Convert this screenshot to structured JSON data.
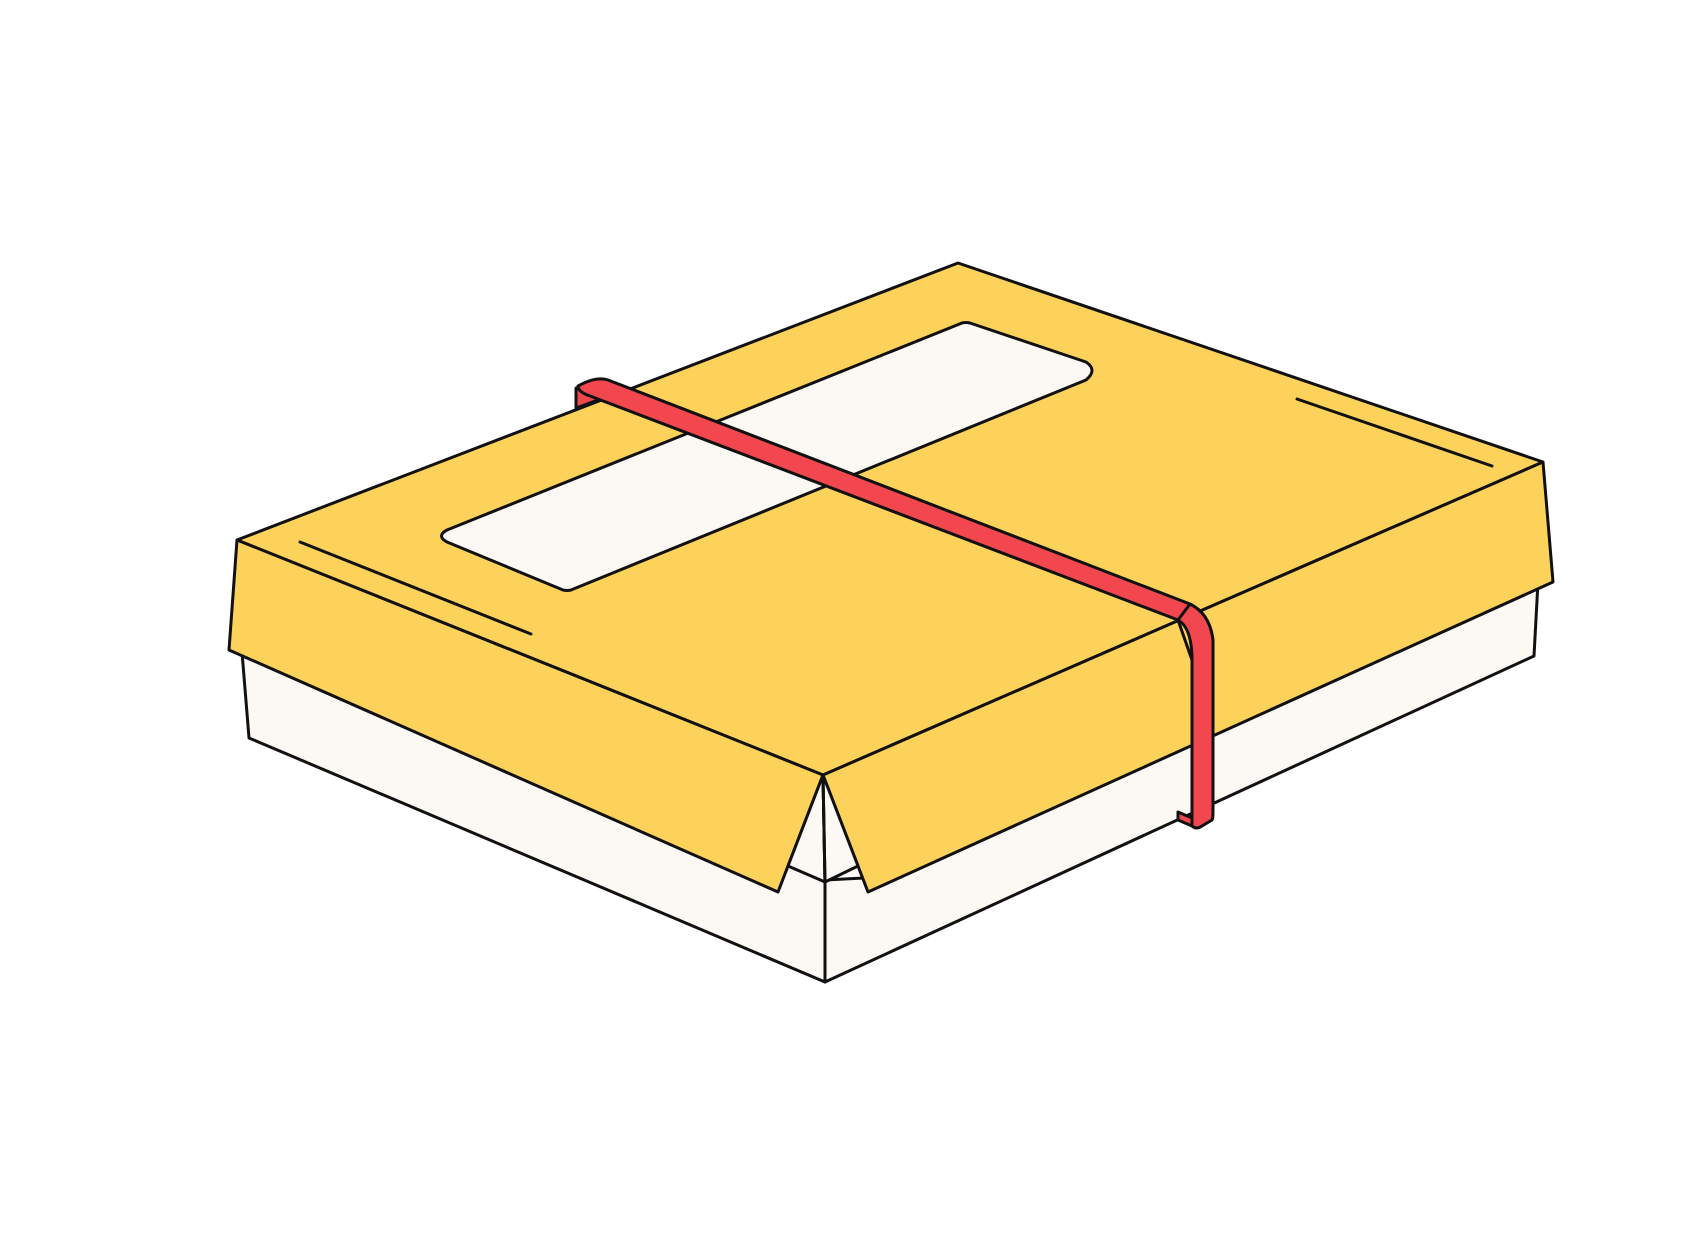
{
  "illustration": {
    "subject_icons": [
      "box-icon",
      "lid-icon",
      "label-icon",
      "strap-icon"
    ],
    "colors": {
      "background": "#ffffff",
      "lid": "#fcd25a",
      "box_body": "#fcf8f3",
      "label": "#fcf8f3",
      "strap": "#f2474e",
      "outline": "#111111"
    }
  }
}
